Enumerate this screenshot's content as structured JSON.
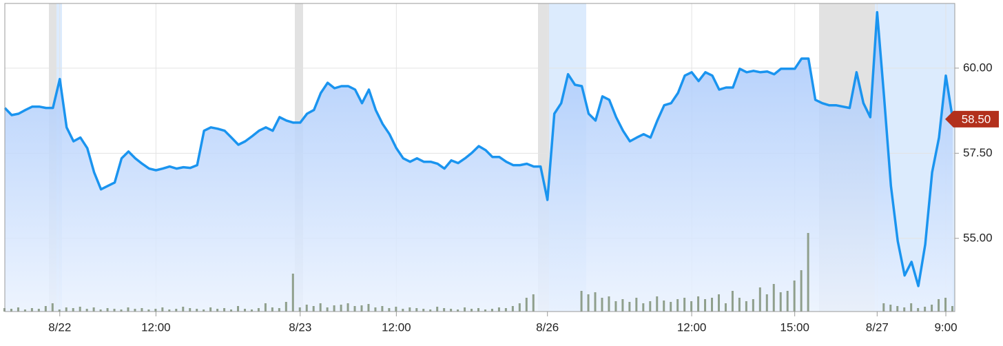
{
  "chart_data": {
    "type": "line",
    "categories": [
      null,
      null,
      null,
      null,
      null,
      null,
      null,
      null,
      "8/22",
      null,
      null,
      null,
      null,
      null,
      null,
      null,
      null,
      null,
      null,
      null,
      null,
      null,
      "12:00",
      null,
      null,
      null,
      null,
      null,
      null,
      null,
      null,
      null,
      null,
      null,
      null,
      null,
      null,
      null,
      null,
      null,
      null,
      null,
      null,
      "8/23",
      null,
      null,
      null,
      null,
      null,
      null,
      null,
      null,
      null,
      null,
      null,
      null,
      null,
      "12:00",
      null,
      null,
      null,
      null,
      null,
      null,
      null,
      null,
      null,
      null,
      null,
      null,
      null,
      null,
      null,
      null,
      null,
      null,
      null,
      null,
      null,
      "8/26",
      null,
      null,
      null,
      null,
      null,
      null,
      null,
      null,
      null,
      null,
      null,
      null,
      null,
      null,
      null,
      null,
      null,
      null,
      null,
      null,
      "12:00",
      null,
      null,
      null,
      null,
      null,
      null,
      null,
      null,
      null,
      null,
      null,
      null,
      null,
      null,
      "15:00",
      null,
      null,
      null,
      null,
      null,
      null,
      null,
      null,
      null,
      null,
      null,
      "8/27",
      null,
      null,
      null,
      null,
      null,
      null,
      null,
      null,
      null,
      "9:00",
      null
    ],
    "values": [
      58.83,
      58.62,
      58.66,
      58.77,
      58.87,
      58.87,
      58.83,
      58.83,
      59.68,
      58.26,
      57.85,
      57.96,
      57.65,
      56.94,
      56.44,
      56.54,
      56.64,
      57.35,
      57.55,
      57.35,
      57.19,
      57.05,
      57.0,
      57.05,
      57.11,
      57.05,
      57.09,
      57.07,
      57.15,
      58.16,
      58.26,
      58.22,
      58.16,
      57.96,
      57.75,
      57.85,
      58.0,
      58.16,
      58.26,
      58.16,
      58.56,
      58.46,
      58.4,
      58.4,
      58.66,
      58.77,
      59.27,
      59.57,
      59.41,
      59.47,
      59.47,
      59.37,
      58.97,
      59.37,
      58.77,
      58.36,
      58.06,
      57.65,
      57.35,
      57.25,
      57.35,
      57.25,
      57.25,
      57.19,
      57.05,
      57.29,
      57.21,
      57.35,
      57.51,
      57.71,
      57.59,
      57.39,
      57.39,
      57.25,
      57.15,
      57.15,
      57.19,
      57.11,
      57.11,
      56.13,
      58.66,
      58.97,
      59.82,
      59.51,
      59.47,
      58.66,
      58.46,
      59.17,
      59.07,
      58.56,
      58.16,
      57.85,
      57.96,
      58.06,
      57.96,
      58.46,
      58.91,
      58.97,
      59.27,
      59.78,
      59.88,
      59.62,
      59.88,
      59.78,
      59.37,
      59.43,
      59.43,
      59.98,
      59.88,
      59.92,
      59.88,
      59.9,
      59.82,
      59.98,
      59.98,
      59.98,
      60.28,
      60.28,
      59.07,
      58.97,
      58.91,
      58.91,
      58.87,
      58.83,
      59.88,
      58.97,
      58.56,
      61.64,
      59.17,
      56.54,
      54.92,
      53.91,
      54.31,
      53.6,
      54.82,
      56.94,
      57.96,
      59.78,
      58.5
    ],
    "color": "#1a94ef",
    "volume": [
      5,
      4,
      6,
      3,
      5,
      4,
      8,
      12,
      3,
      6,
      5,
      7,
      4,
      6,
      3,
      5,
      4,
      3,
      6,
      4,
      5,
      3,
      4,
      6,
      3,
      4,
      7,
      5,
      4,
      3,
      6,
      4,
      5,
      3,
      8,
      4,
      3,
      5,
      12,
      6,
      5,
      14,
      55,
      6,
      10,
      8,
      12,
      6,
      9,
      10,
      12,
      8,
      9,
      11,
      6,
      8,
      5,
      7,
      4,
      6,
      5,
      4,
      3,
      7,
      5,
      4,
      3,
      6,
      4,
      5,
      3,
      4,
      6,
      5,
      8,
      12,
      20,
      25,
      0,
      0,
      0,
      0,
      0,
      0,
      30,
      25,
      28,
      20,
      22,
      15,
      18,
      14,
      20,
      12,
      15,
      22,
      16,
      14,
      18,
      20,
      15,
      22,
      18,
      20,
      25,
      12,
      30,
      20,
      15,
      18,
      35,
      25,
      40,
      28,
      30,
      45,
      60,
      114,
      0,
      0,
      0,
      0,
      0,
      0,
      0,
      0,
      0,
      0,
      12,
      10,
      8,
      6,
      12,
      5,
      7,
      10,
      18,
      20,
      8
    ],
    "volume_color": "#8f9f8c",
    "ylim": [
      52.85,
      61.9
    ],
    "yticks": [
      {
        "value": 55,
        "label": "55.00"
      },
      {
        "value": 57.5,
        "label": "57.50"
      },
      {
        "value": 60,
        "label": "60.00"
      }
    ],
    "grid": true,
    "last_value_label": "58.50"
  }
}
